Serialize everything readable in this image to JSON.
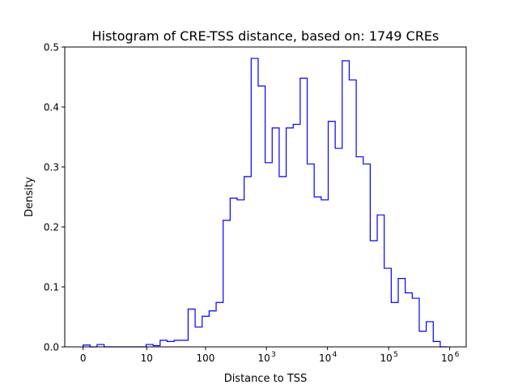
{
  "chart_data": {
    "type": "histogram-step",
    "title": "Histogram of CRE-TSS distance, based on: 1749 CREs",
    "xlabel": "Distance to TSS",
    "ylabel": "Density",
    "xscale": "log10(1+x)",
    "xlim_log10": [
      -0.3,
      6.27
    ],
    "ylim": [
      0,
      0.5
    ],
    "x_ticks": [
      {
        "value": 0,
        "label": "0",
        "sup": ""
      },
      {
        "value": 10,
        "label": "10",
        "sup": ""
      },
      {
        "value": 100,
        "label": "100",
        "sup": ""
      },
      {
        "value": 1000,
        "label": "10",
        "sup": "3"
      },
      {
        "value": 10000,
        "label": "10",
        "sup": "4"
      },
      {
        "value": 100000,
        "label": "10",
        "sup": "5"
      },
      {
        "value": 1000000,
        "label": "10",
        "sup": "6"
      }
    ],
    "y_ticks": [
      {
        "value": 0.0,
        "label": "0.0"
      },
      {
        "value": 0.1,
        "label": "0.1"
      },
      {
        "value": 0.2,
        "label": "0.2"
      },
      {
        "value": 0.3,
        "label": "0.3"
      },
      {
        "value": 0.4,
        "label": "0.4"
      },
      {
        "value": 0.5,
        "label": "0.5"
      }
    ],
    "bin_range_log10": [
      0,
      5.96
    ],
    "bin_count": 52,
    "densities": [
      0.003,
      0.0,
      0.004,
      0.0,
      0.0,
      0.0,
      0.0,
      0.0,
      0.0,
      0.004,
      0.002,
      0.011,
      0.009,
      0.011,
      0.011,
      0.063,
      0.033,
      0.051,
      0.06,
      0.074,
      0.211,
      0.248,
      0.245,
      0.284,
      0.481,
      0.435,
      0.307,
      0.365,
      0.284,
      0.365,
      0.371,
      0.448,
      0.305,
      0.25,
      0.245,
      0.376,
      0.331,
      0.477,
      0.445,
      0.317,
      0.305,
      0.177,
      0.22,
      0.131,
      0.074,
      0.114,
      0.09,
      0.081,
      0.026,
      0.042,
      0.009,
      0.0
    ],
    "line_color": "#0000ff"
  }
}
